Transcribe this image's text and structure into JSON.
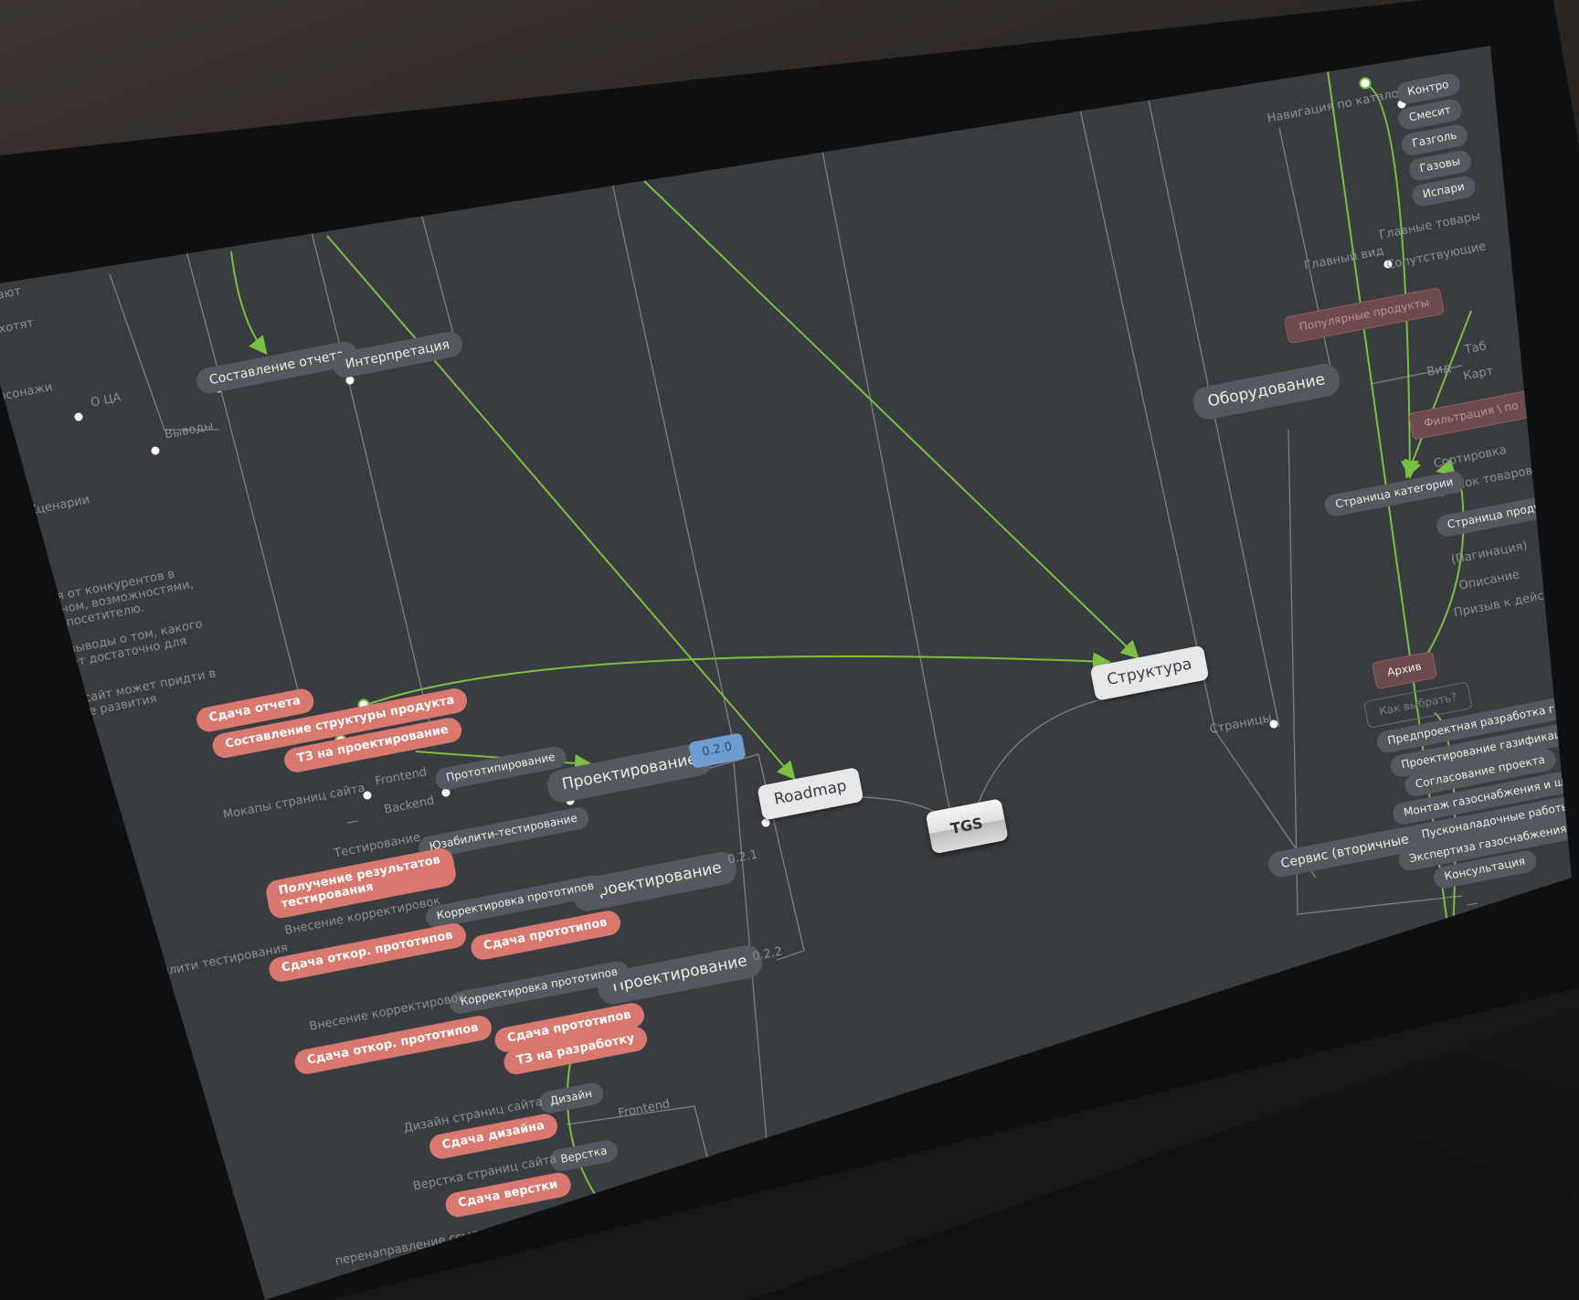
{
  "colors": {
    "canvas": "#393c41",
    "node": "#55595f",
    "milestone": "#d9786e",
    "version": "#6f9dd0",
    "link": "#7ac142",
    "root": "#e6e7e9"
  },
  "mindmap": {
    "root": "TGS",
    "nodes": [
      "Составление отчета",
      "Интерпретация",
      "О ЦА",
      "Выводы",
      "ают",
      "хотят",
      "рсонажи",
      "Сценарии",
      "ся от конкурентов в\nйном, возможностями,\nк посетителю.",
      "выводы о том, какого\nет достаточно для",
      "у сайт может придти в\nссе развития",
      "Сдача отчета",
      "Составление структуры продукта",
      "ТЗ на проектирование",
      "Прототипирование",
      "Проектирование",
      "0.2.0",
      "Roadmap",
      "TGS",
      "Структура",
      "Оборудование",
      "Frontend",
      "Мокапы страниц сайта",
      "Backend",
      "—",
      "Тестирование",
      "Юзабилити-тестирование",
      "Получение результатов\nтестирования",
      "Проектирование",
      "0.2.1",
      "Внесение корректировок",
      "Корректировка прототипов",
      "Сдача откор. прототипов",
      "Сдача прототипов",
      "билити тестирования",
      "Проектирование",
      "0.2.2",
      "Корректировка прототипов",
      "Внесение корректировок",
      "Сдача откор. прототипов",
      "Сдача прототипов",
      "ТЗ на разработку",
      "Дизайн",
      "Frontend",
      "Дизайн страниц сайта",
      "Сдача дизайна",
      "Верстка",
      "Верстка страниц сайта",
      "Сдача верстки",
      "перенаправление ссылок на навые адреса",
      "Навигация по каталогу",
      "Контро",
      "Смесит",
      "Газголь",
      "Газовы",
      "Испари",
      "Главные товары",
      "Главный вид",
      "Сопутствующие",
      "Популярные продукты",
      "Вид",
      "Таб",
      "Карт",
      "Фильтрация \\ по",
      "Сортировка",
      "список товаров",
      "Страница категории",
      "Страница проду",
      "(Пагинация)",
      "Описание",
      "Призыв к действ",
      "Архив",
      "Как выбрать?",
      "Страницы",
      "Сервис (вторичные услуги)",
      "Предпроектная разработка газифик",
      "Проектирование газификации",
      "Согласование проекта",
      "Монтаж газоснабжения и шефмонт",
      "Пусконаладочные работы",
      "Экспертиза газоснабжения и регист",
      "Консультация",
      "—"
    ]
  }
}
